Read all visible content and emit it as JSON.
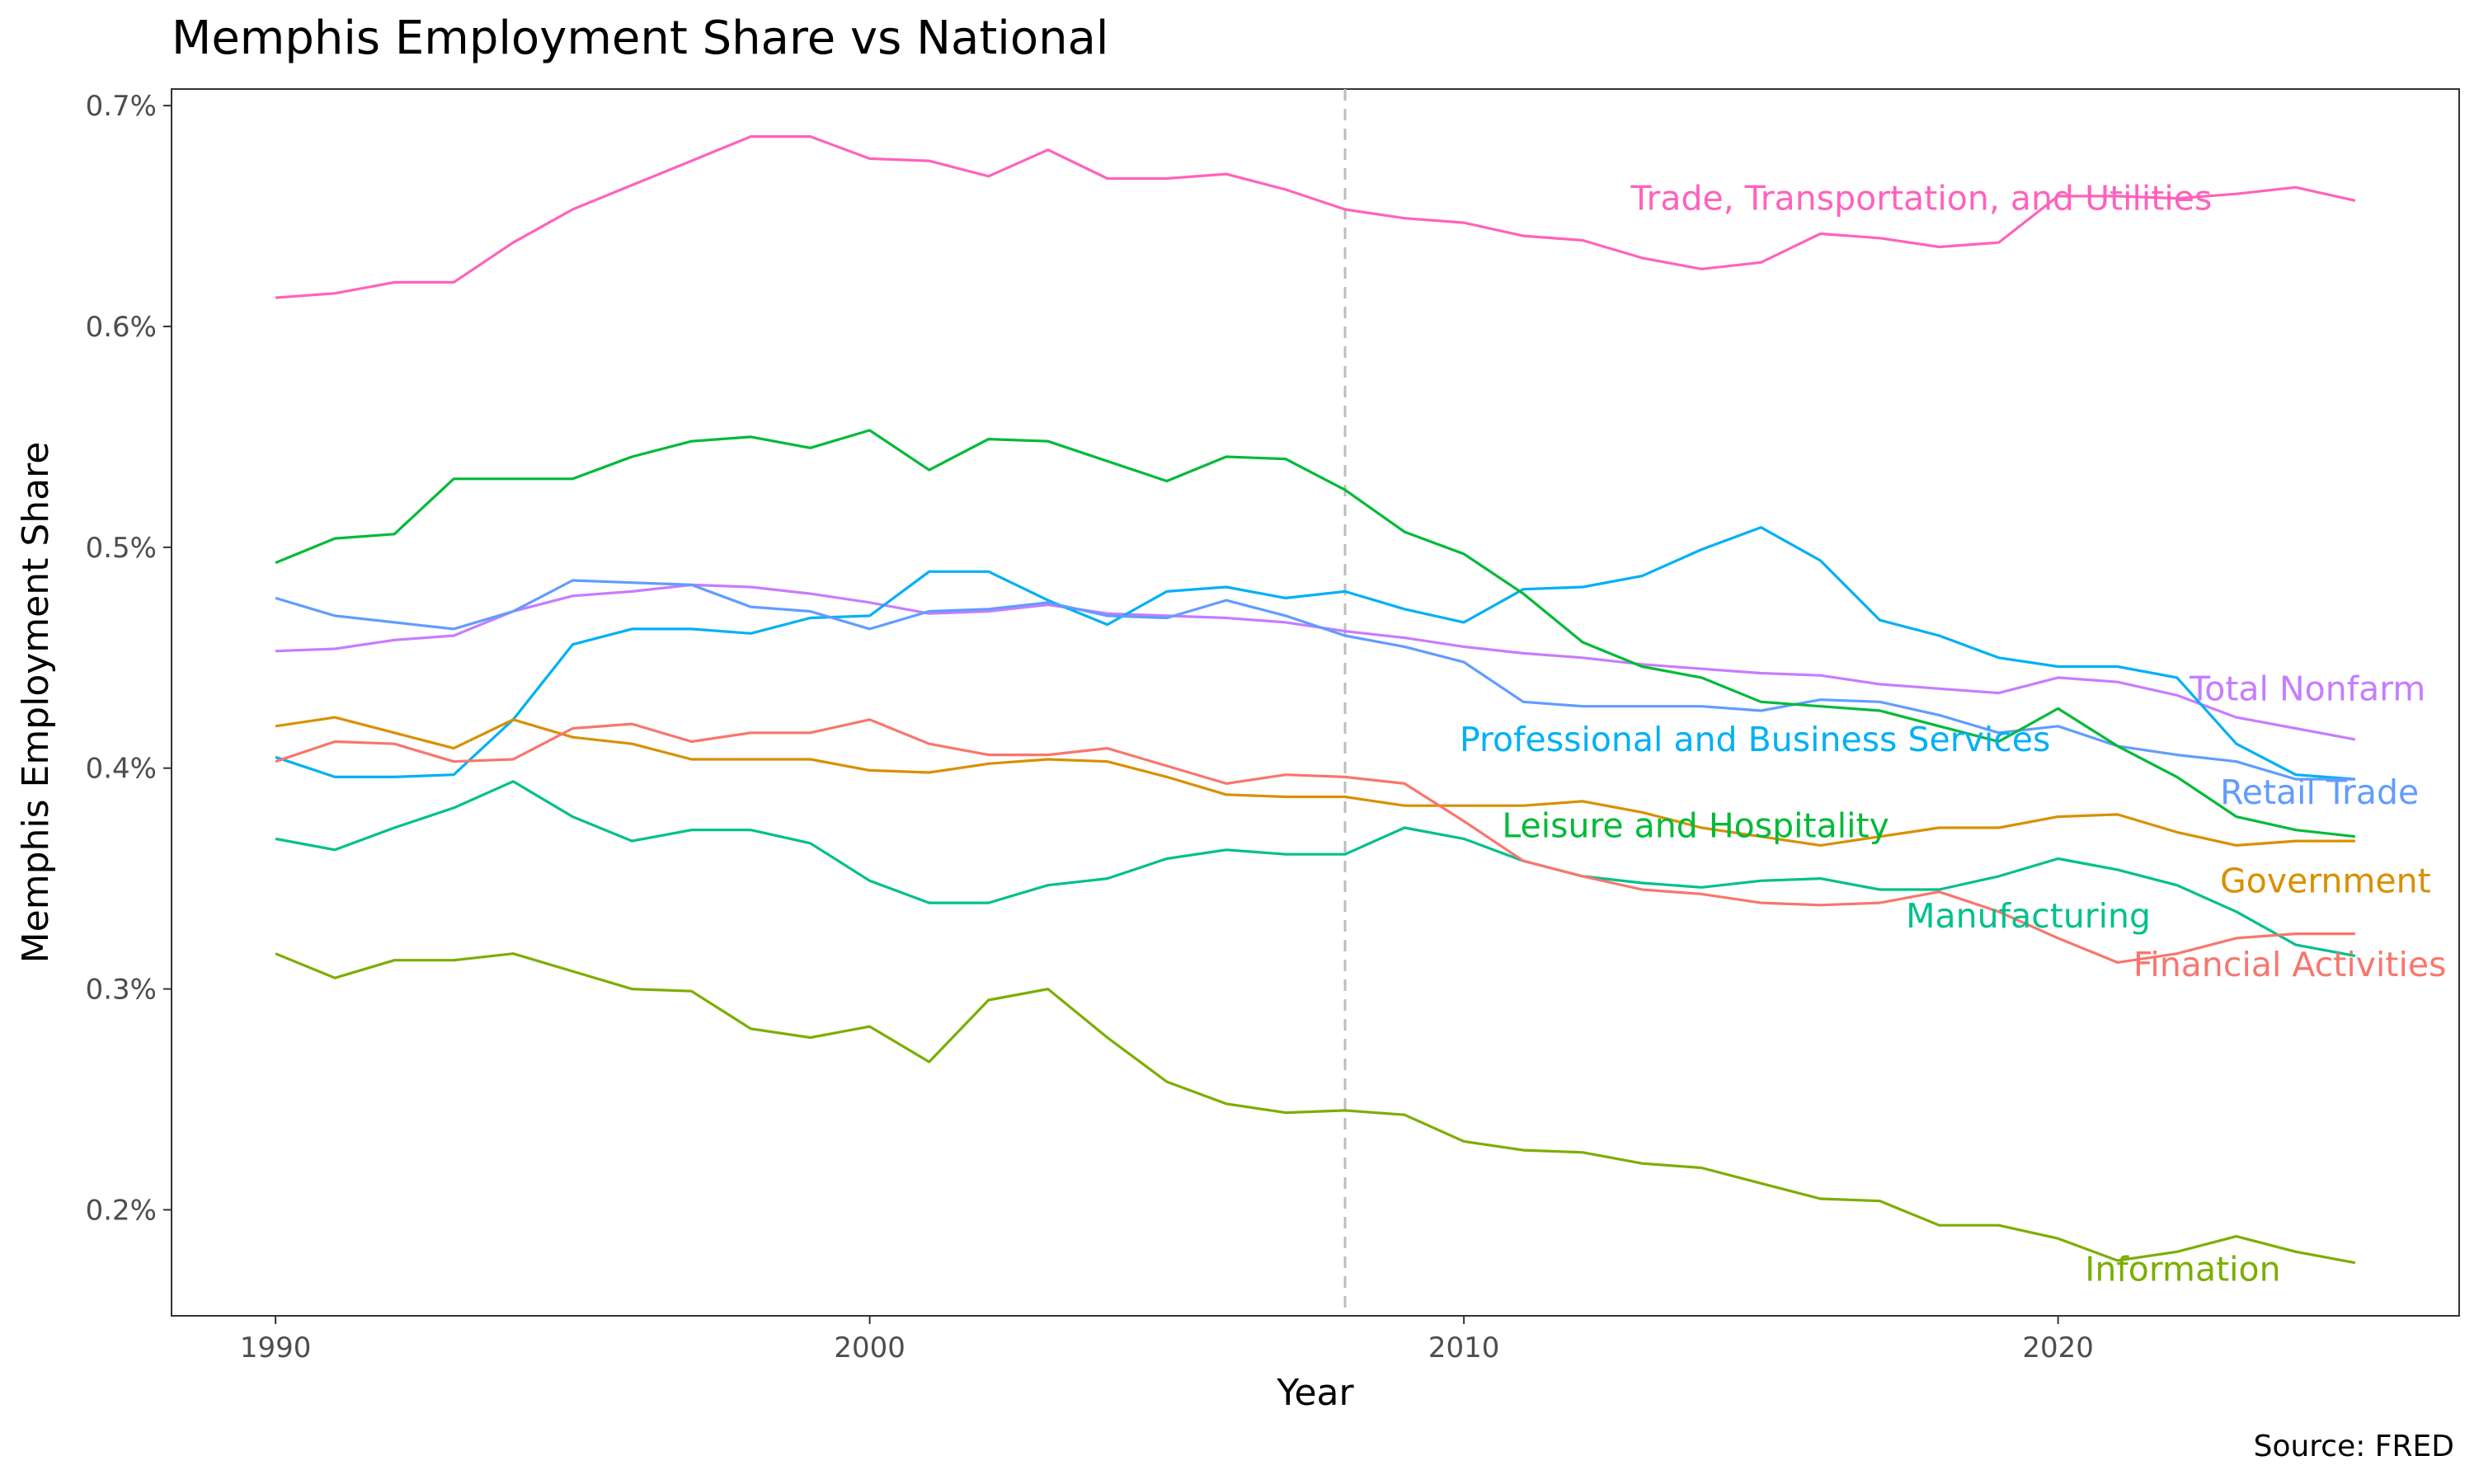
{
  "chart_data": {
    "type": "line",
    "title": "Memphis Employment Share vs National",
    "caption": "Source: FRED",
    "xlabel": "Year",
    "ylabel": "Memphis Employment Share",
    "xlim": [
      1988.25,
      2026.75
    ],
    "ylim": [
      0.152,
      0.7075
    ],
    "x_ticks": [
      1990,
      2000,
      2010,
      2020
    ],
    "y_ticks": [
      0.2,
      0.3,
      0.4,
      0.5,
      0.6,
      0.7
    ],
    "y_tick_labels": [
      "0.2%",
      "0.3%",
      "0.4%",
      "0.5%",
      "0.6%",
      "0.7%"
    ],
    "grid": false,
    "reference_line": {
      "x": 2008,
      "style": "dashed",
      "color": "#bdbdbd"
    },
    "x": [
      1990,
      1991,
      1992,
      1993,
      1994,
      1995,
      1996,
      1997,
      1998,
      1999,
      2000,
      2001,
      2002,
      2003,
      2004,
      2005,
      2006,
      2007,
      2008,
      2009,
      2010,
      2011,
      2012,
      2013,
      2014,
      2015,
      2016,
      2017,
      2018,
      2019,
      2020,
      2021,
      2022,
      2023,
      2024,
      2025
    ],
    "series": [
      {
        "name": "Trade, Transportation, and Utilities",
        "color": "#FF62BC",
        "label_pos": [
          2017.7,
          0.658
        ],
        "values": [
          0.613,
          0.615,
          0.62,
          0.62,
          0.638,
          0.653,
          0.664,
          0.675,
          0.686,
          0.686,
          0.676,
          0.675,
          0.668,
          0.68,
          0.667,
          0.667,
          0.669,
          0.662,
          0.653,
          0.649,
          0.647,
          0.641,
          0.639,
          0.631,
          0.626,
          0.629,
          0.642,
          0.64,
          0.636,
          0.638,
          0.659,
          0.659,
          0.658,
          0.66,
          0.663,
          0.657
        ]
      },
      {
        "name": "Total Nonfarm",
        "color": "#C77CFF",
        "label_pos": [
          2024.2,
          0.436
        ],
        "values": [
          0.453,
          0.454,
          0.458,
          0.46,
          0.471,
          0.478,
          0.48,
          0.483,
          0.482,
          0.479,
          0.475,
          0.47,
          0.471,
          0.474,
          0.47,
          0.469,
          0.468,
          0.466,
          0.462,
          0.459,
          0.455,
          0.452,
          0.45,
          0.447,
          0.445,
          0.443,
          0.442,
          0.438,
          0.436,
          0.434,
          0.441,
          0.439,
          0.433,
          0.423,
          0.418,
          0.413
        ]
      },
      {
        "name": "Professional and Business Services",
        "color": "#00B0F6",
        "label_pos": [
          2014.9,
          0.413
        ],
        "values": [
          0.405,
          0.396,
          0.396,
          0.397,
          0.422,
          0.456,
          0.463,
          0.463,
          0.461,
          0.468,
          0.469,
          0.489,
          0.489,
          0.476,
          0.465,
          0.48,
          0.482,
          0.477,
          0.48,
          0.472,
          0.466,
          0.481,
          0.482,
          0.487,
          0.499,
          0.509,
          0.494,
          0.467,
          0.46,
          0.45,
          0.446,
          0.446,
          0.441,
          0.411,
          0.397,
          0.395
        ]
      },
      {
        "name": "Retail Trade",
        "color": "#619CFF",
        "label_pos": [
          2024.4,
          0.389
        ],
        "values": [
          0.477,
          0.469,
          0.466,
          0.463,
          0.471,
          0.485,
          0.484,
          0.483,
          0.473,
          0.471,
          0.463,
          0.471,
          0.472,
          0.475,
          0.469,
          0.468,
          0.476,
          0.469,
          0.46,
          0.455,
          0.448,
          0.43,
          0.428,
          0.428,
          0.428,
          0.426,
          0.431,
          0.43,
          0.424,
          0.416,
          0.419,
          0.41,
          0.406,
          0.403,
          0.395,
          0.395
        ]
      },
      {
        "name": "Leisure and Hospitality",
        "color": "#00BA38",
        "label_pos": [
          2013.9,
          0.374
        ],
        "values": [
          0.493,
          0.504,
          0.506,
          0.531,
          0.531,
          0.531,
          0.541,
          0.548,
          0.55,
          0.545,
          0.553,
          0.535,
          0.549,
          0.548,
          0.539,
          0.53,
          0.541,
          0.54,
          0.526,
          0.507,
          0.497,
          0.479,
          0.457,
          0.446,
          0.441,
          0.43,
          0.428,
          0.426,
          0.419,
          0.412,
          0.427,
          0.41,
          0.396,
          0.378,
          0.372,
          0.369
        ]
      },
      {
        "name": "Government",
        "color": "#D89000",
        "label_pos": [
          2024.5,
          0.349
        ],
        "values": [
          0.419,
          0.423,
          0.416,
          0.409,
          0.422,
          0.414,
          0.411,
          0.404,
          0.404,
          0.404,
          0.399,
          0.398,
          0.402,
          0.404,
          0.403,
          0.396,
          0.388,
          0.387,
          0.387,
          0.383,
          0.383,
          0.383,
          0.385,
          0.38,
          0.373,
          0.369,
          0.365,
          0.369,
          0.373,
          0.373,
          0.378,
          0.379,
          0.371,
          0.365,
          0.367,
          0.367
        ]
      },
      {
        "name": "Manufacturing",
        "color": "#00C08B",
        "label_pos": [
          2019.5,
          0.333
        ],
        "values": [
          0.368,
          0.363,
          0.373,
          0.382,
          0.394,
          0.378,
          0.367,
          0.372,
          0.372,
          0.366,
          0.349,
          0.339,
          0.339,
          0.347,
          0.35,
          0.359,
          0.363,
          0.361,
          0.361,
          0.373,
          0.368,
          0.358,
          0.351,
          0.348,
          0.346,
          0.349,
          0.35,
          0.345,
          0.345,
          0.351,
          0.359,
          0.354,
          0.347,
          0.335,
          0.32,
          0.315
        ]
      },
      {
        "name": "Financial Activities",
        "color": "#F8766D",
        "label_pos": [
          2023.9,
          0.311
        ],
        "values": [
          0.403,
          0.412,
          0.411,
          0.403,
          0.404,
          0.418,
          0.42,
          0.412,
          0.416,
          0.416,
          0.422,
          0.411,
          0.406,
          0.406,
          0.409,
          0.401,
          0.393,
          0.397,
          0.396,
          0.393,
          0.376,
          0.358,
          0.351,
          0.345,
          0.343,
          0.339,
          0.338,
          0.339,
          0.344,
          0.335,
          0.323,
          0.312,
          0.316,
          0.323,
          0.325,
          0.325
        ]
      },
      {
        "name": "Information",
        "color": "#7CAE00",
        "label_pos": [
          2022.1,
          0.173
        ],
        "values": [
          0.316,
          0.305,
          0.313,
          0.313,
          0.316,
          0.308,
          0.3,
          0.299,
          0.282,
          0.278,
          0.283,
          0.267,
          0.295,
          0.3,
          0.278,
          0.258,
          0.248,
          0.244,
          0.245,
          0.243,
          0.231,
          0.227,
          0.226,
          0.221,
          0.219,
          0.212,
          0.205,
          0.204,
          0.193,
          0.193,
          0.187,
          0.177,
          0.181,
          0.188,
          0.181,
          0.176
        ]
      }
    ]
  }
}
